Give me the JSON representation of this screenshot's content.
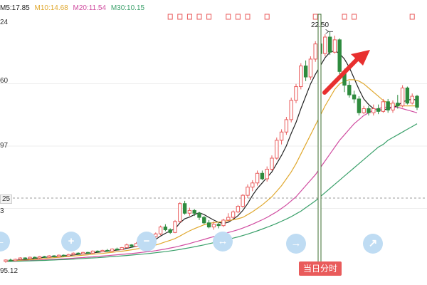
{
  "legend": {
    "items": [
      {
        "label": "M5:17.85",
        "color": "#222222"
      },
      {
        "label": "M10:14.68",
        "color": "#e0a82e"
      },
      {
        "label": "M20:11.54",
        "color": "#d04ca0"
      },
      {
        "label": "M30:10.15",
        "color": "#3aa06a"
      }
    ]
  },
  "y_labels": [
    "24",
    "60",
    "97",
    "25",
    "3",
    "95.12"
  ],
  "high_label": "22.50",
  "intraday_button": "当日分时",
  "icons": {
    "zoom_in": "zoom-in-icon",
    "zoom_out": "zoom-out-icon",
    "next": "arrow-right-icon",
    "expand": "expand-icon"
  },
  "colors": {
    "up": "#e95b5b",
    "down": "#2e8b3e",
    "arrow": "#e8302f",
    "crosshair": "#3b6e2f"
  },
  "chart_data": {
    "type": "candlestick",
    "title": "",
    "ylim": [
      5.12,
      23.24
    ],
    "candles": [
      [
        5.8,
        5.9,
        5.7,
        5.95
      ],
      [
        5.9,
        5.85,
        5.8,
        6.0
      ],
      [
        5.85,
        5.95,
        5.8,
        6.0
      ],
      [
        5.95,
        6.05,
        5.9,
        6.1
      ],
      [
        6.05,
        6.0,
        5.95,
        6.1
      ],
      [
        6.0,
        6.1,
        5.95,
        6.15
      ],
      [
        6.1,
        6.05,
        6.0,
        6.15
      ],
      [
        6.05,
        6.15,
        6.0,
        6.2
      ],
      [
        6.15,
        6.1,
        6.05,
        6.2
      ],
      [
        6.1,
        6.2,
        6.05,
        6.25
      ],
      [
        6.2,
        6.15,
        6.1,
        6.25
      ],
      [
        6.15,
        6.25,
        6.1,
        6.3
      ],
      [
        6.25,
        6.2,
        6.15,
        6.3
      ],
      [
        6.2,
        6.3,
        6.15,
        6.35
      ],
      [
        6.3,
        6.4,
        6.25,
        6.45
      ],
      [
        6.4,
        6.35,
        6.3,
        6.45
      ],
      [
        6.35,
        6.45,
        6.3,
        6.5
      ],
      [
        6.45,
        6.4,
        6.35,
        6.5
      ],
      [
        6.4,
        6.55,
        6.35,
        6.6
      ],
      [
        6.55,
        6.5,
        6.45,
        6.6
      ],
      [
        6.5,
        6.6,
        6.45,
        6.65
      ],
      [
        6.6,
        6.55,
        6.5,
        6.7
      ],
      [
        6.55,
        6.7,
        6.5,
        6.75
      ],
      [
        6.7,
        6.65,
        6.6,
        6.8
      ],
      [
        6.65,
        6.8,
        6.6,
        6.85
      ],
      [
        6.8,
        7.0,
        6.75,
        7.1
      ],
      [
        7.0,
        6.9,
        6.8,
        7.05
      ],
      [
        6.9,
        7.1,
        6.85,
        7.2
      ],
      [
        7.1,
        7.3,
        7.05,
        7.4
      ],
      [
        7.3,
        7.2,
        7.1,
        7.35
      ],
      [
        7.2,
        7.6,
        7.15,
        7.7
      ],
      [
        7.6,
        7.8,
        7.5,
        7.9
      ],
      [
        7.8,
        8.3,
        7.7,
        8.4
      ],
      [
        8.3,
        8.1,
        8.0,
        8.5
      ],
      [
        8.1,
        7.9,
        7.8,
        8.2
      ],
      [
        7.9,
        8.7,
        7.85,
        8.8
      ],
      [
        8.7,
        10.0,
        8.6,
        10.1
      ],
      [
        10.0,
        9.3,
        9.2,
        10.2
      ],
      [
        9.3,
        9.5,
        9.1,
        9.7
      ],
      [
        9.5,
        9.3,
        9.1,
        9.6
      ],
      [
        9.3,
        9.0,
        8.8,
        9.4
      ],
      [
        9.0,
        8.6,
        8.5,
        9.1
      ],
      [
        8.6,
        8.3,
        8.2,
        8.8
      ],
      [
        8.3,
        8.5,
        8.1,
        8.7
      ],
      [
        8.5,
        8.4,
        8.2,
        8.6
      ],
      [
        8.4,
        8.8,
        8.3,
        8.9
      ],
      [
        8.8,
        9.0,
        8.7,
        9.3
      ],
      [
        9.0,
        9.4,
        8.9,
        9.5
      ],
      [
        9.4,
        9.8,
        9.3,
        9.9
      ],
      [
        9.8,
        10.6,
        9.7,
        10.7
      ],
      [
        10.6,
        11.2,
        10.4,
        11.4
      ],
      [
        11.2,
        11.5,
        10.9,
        11.7
      ],
      [
        11.5,
        12.2,
        11.3,
        12.4
      ],
      [
        12.2,
        11.8,
        11.7,
        12.4
      ],
      [
        11.8,
        12.5,
        11.6,
        12.7
      ],
      [
        12.5,
        13.3,
        12.4,
        13.5
      ],
      [
        13.3,
        14.6,
        13.2,
        14.8
      ],
      [
        14.6,
        15.2,
        14.3,
        15.4
      ],
      [
        15.2,
        16.1,
        15.0,
        16.3
      ],
      [
        16.1,
        17.5,
        15.9,
        17.7
      ],
      [
        17.5,
        18.5,
        17.3,
        18.7
      ],
      [
        18.5,
        20.0,
        18.3,
        20.2
      ],
      [
        20.0,
        19.2,
        18.9,
        20.4
      ],
      [
        19.2,
        20.5,
        19.0,
        20.7
      ],
      [
        20.5,
        21.6,
        20.3,
        21.8
      ],
      [
        21.6,
        20.9,
        20.6,
        21.9
      ],
      [
        20.9,
        22.1,
        20.7,
        22.3
      ],
      [
        22.1,
        21.0,
        20.8,
        22.5
      ],
      [
        21.0,
        21.9,
        20.9,
        22.2
      ],
      [
        21.9,
        19.6,
        19.4,
        22.0
      ],
      [
        19.6,
        18.6,
        18.1,
        19.8
      ],
      [
        18.6,
        17.9,
        17.7,
        18.9
      ],
      [
        17.9,
        17.6,
        17.3,
        18.2
      ],
      [
        17.6,
        16.6,
        16.4,
        17.8
      ],
      [
        16.6,
        16.9,
        16.5,
        17.1
      ],
      [
        16.9,
        16.6,
        16.4,
        17.1
      ],
      [
        16.6,
        16.9,
        16.4,
        17.2
      ],
      [
        16.9,
        16.7,
        16.5,
        17.2
      ],
      [
        16.7,
        17.4,
        16.6,
        17.6
      ],
      [
        17.4,
        16.8,
        16.6,
        17.6
      ],
      [
        16.8,
        17.3,
        16.6,
        17.5
      ],
      [
        17.3,
        17.1,
        16.9,
        17.9
      ],
      [
        17.1,
        18.4,
        17.0,
        18.6
      ],
      [
        18.4,
        17.3,
        17.2,
        18.5
      ],
      [
        17.3,
        17.8,
        17.2,
        18.0
      ],
      [
        17.8,
        17.0,
        16.8,
        17.9
      ]
    ],
    "ma": [
      {
        "name": "M5",
        "color": "#222222",
        "values": [
          5.8,
          5.85,
          5.88,
          5.9,
          5.93,
          5.98,
          6.02,
          6.06,
          6.09,
          6.12,
          6.14,
          6.17,
          6.2,
          6.23,
          6.27,
          6.31,
          6.35,
          6.38,
          6.42,
          6.46,
          6.5,
          6.54,
          6.58,
          6.62,
          6.66,
          6.75,
          6.82,
          6.9,
          7.02,
          7.12,
          7.24,
          7.4,
          7.64,
          7.84,
          8.02,
          8.16,
          8.6,
          8.9,
          9.02,
          9.2,
          9.34,
          9.2,
          9.0,
          8.8,
          8.64,
          8.56,
          8.64,
          8.86,
          9.12,
          9.5,
          10.0,
          10.6,
          11.1,
          11.5,
          11.9,
          12.3,
          12.9,
          13.5,
          14.2,
          15.1,
          15.9,
          16.9,
          17.8,
          18.7,
          19.4,
          20.0,
          20.6,
          21.0,
          21.1,
          20.9,
          20.5,
          19.9,
          19.1,
          18.3,
          17.6,
          17.2,
          16.9,
          16.8,
          16.8,
          16.9,
          17.0,
          17.1,
          17.4,
          17.5,
          17.6,
          17.5
        ]
      },
      {
        "name": "M10",
        "color": "#e0a82e",
        "values": [
          5.8,
          5.82,
          5.85,
          5.87,
          5.89,
          5.92,
          5.95,
          5.98,
          6.01,
          6.04,
          6.07,
          6.1,
          6.13,
          6.16,
          6.19,
          6.22,
          6.25,
          6.28,
          6.32,
          6.35,
          6.38,
          6.42,
          6.46,
          6.5,
          6.54,
          6.59,
          6.64,
          6.7,
          6.76,
          6.83,
          6.9,
          6.99,
          7.1,
          7.22,
          7.33,
          7.46,
          7.64,
          7.84,
          8.02,
          8.18,
          8.32,
          8.46,
          8.56,
          8.62,
          8.66,
          8.7,
          8.76,
          8.82,
          8.9,
          9.0,
          9.2,
          9.4,
          9.65,
          9.9,
          10.2,
          10.5,
          10.9,
          11.3,
          11.8,
          12.3,
          12.9,
          13.6,
          14.3,
          15.0,
          15.7,
          16.4,
          17.1,
          17.7,
          18.3,
          18.7,
          18.9,
          19.0,
          19.0,
          18.9,
          18.7,
          18.4,
          18.1,
          17.8,
          17.5,
          17.3,
          17.2,
          17.1,
          17.1,
          17.1,
          17.1,
          17.1
        ]
      },
      {
        "name": "M20",
        "color": "#d04ca0",
        "values": [
          5.8,
          5.81,
          5.82,
          5.83,
          5.85,
          5.86,
          5.88,
          5.9,
          5.91,
          5.93,
          5.95,
          5.97,
          5.99,
          6.01,
          6.03,
          6.06,
          6.08,
          6.11,
          6.13,
          6.16,
          6.19,
          6.22,
          6.25,
          6.28,
          6.31,
          6.34,
          6.37,
          6.41,
          6.45,
          6.49,
          6.53,
          6.58,
          6.64,
          6.7,
          6.77,
          6.84,
          6.92,
          7.01,
          7.1,
          7.2,
          7.3,
          7.4,
          7.5,
          7.6,
          7.7,
          7.8,
          7.9,
          8.0,
          8.1,
          8.22,
          8.36,
          8.5,
          8.66,
          8.82,
          9.0,
          9.2,
          9.4,
          9.65,
          9.9,
          10.2,
          10.5,
          10.9,
          11.3,
          11.7,
          12.1,
          12.6,
          13.1,
          13.6,
          14.1,
          14.6,
          15.0,
          15.4,
          15.8,
          16.1,
          16.4,
          16.6,
          16.8,
          16.9,
          17.0,
          17.0,
          17.0,
          17.0,
          16.9,
          16.8,
          16.7,
          16.6
        ]
      },
      {
        "name": "M30",
        "color": "#3aa06a",
        "values": [
          5.8,
          5.8,
          5.81,
          5.82,
          5.83,
          5.84,
          5.85,
          5.86,
          5.87,
          5.89,
          5.9,
          5.92,
          5.93,
          5.95,
          5.97,
          5.99,
          6.01,
          6.03,
          6.05,
          6.07,
          6.1,
          6.12,
          6.15,
          6.17,
          6.2,
          6.23,
          6.26,
          6.29,
          6.32,
          6.35,
          6.39,
          6.43,
          6.47,
          6.51,
          6.56,
          6.61,
          6.67,
          6.73,
          6.79,
          6.86,
          6.93,
          7.0,
          7.08,
          7.16,
          7.24,
          7.32,
          7.4,
          7.49,
          7.58,
          7.68,
          7.78,
          7.9,
          8.02,
          8.15,
          8.28,
          8.42,
          8.56,
          8.72,
          8.88,
          9.05,
          9.25,
          9.45,
          9.7,
          9.95,
          10.2,
          10.5,
          10.8,
          11.1,
          11.4,
          11.7,
          12.0,
          12.3,
          12.6,
          12.9,
          13.2,
          13.5,
          13.8,
          14.1,
          14.3,
          14.6,
          14.8,
          15.0,
          15.2,
          15.4,
          15.6,
          15.8
        ]
      }
    ]
  }
}
